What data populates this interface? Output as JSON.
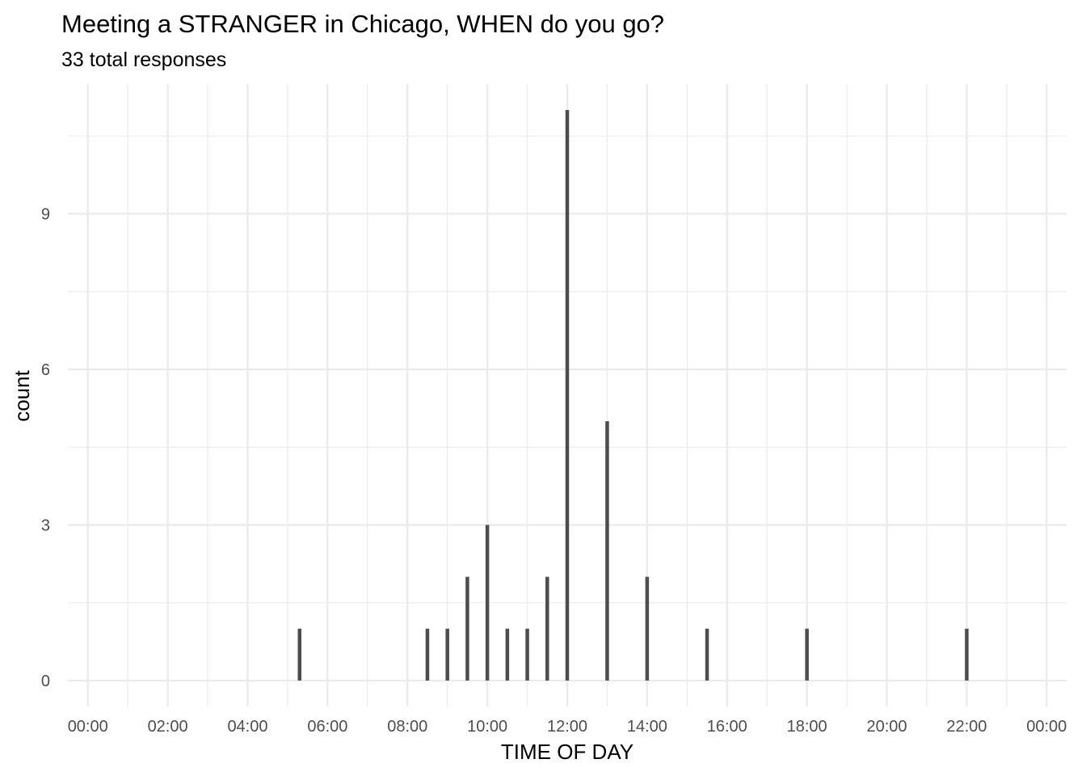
{
  "chart_data": {
    "type": "bar",
    "title": "Meeting a STRANGER in Chicago, WHEN do you go?",
    "subtitle": "33 total responses",
    "xlabel": "TIME OF DAY",
    "ylabel": "count",
    "x_unit": "hours",
    "xlim": [
      -0.5,
      24.5
    ],
    "ylim": [
      -0.5,
      11.5
    ],
    "x_ticks": [
      0,
      2,
      4,
      6,
      8,
      10,
      12,
      14,
      16,
      18,
      20,
      22,
      24
    ],
    "x_tick_labels": [
      "00:00",
      "02:00",
      "04:00",
      "06:00",
      "08:00",
      "10:00",
      "12:00",
      "14:00",
      "16:00",
      "18:00",
      "20:00",
      "22:00",
      "00:00"
    ],
    "y_ticks": [
      0,
      3,
      6,
      9
    ],
    "y_tick_labels": [
      "0",
      "3",
      "6",
      "9"
    ],
    "grid": true,
    "bar_color": "#4d4d4d",
    "x": [
      5.3,
      8.5,
      9.0,
      9.5,
      10.0,
      10.5,
      11.0,
      11.5,
      12.0,
      13.0,
      14.0,
      15.5,
      18.0,
      22.0
    ],
    "values": [
      1,
      1,
      1,
      2,
      3,
      1,
      1,
      2,
      11,
      5,
      2,
      1,
      1,
      1
    ]
  }
}
